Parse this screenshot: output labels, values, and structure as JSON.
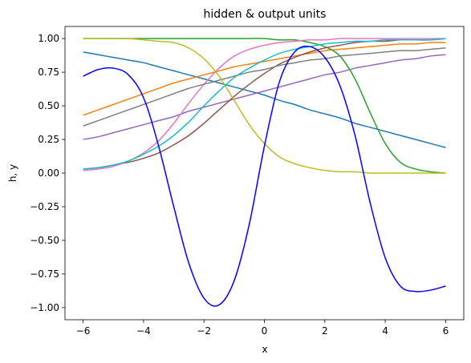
{
  "chart_data": {
    "type": "line",
    "title": "hidden & output units",
    "xlabel": "x",
    "ylabel": "h, y",
    "xlim": [
      -6.6,
      6.6
    ],
    "ylim": [
      -1.09,
      1.09
    ],
    "x_ticks": [
      -6,
      -4,
      -2,
      0,
      2,
      4,
      6
    ],
    "y_ticks": [
      -1.0,
      -0.75,
      -0.5,
      -0.25,
      0.0,
      0.25,
      0.5,
      0.75,
      1.0
    ],
    "x_tick_labels": [
      "−6",
      "−4",
      "−2",
      "0",
      "2",
      "4",
      "6"
    ],
    "y_tick_labels": [
      "−1.00",
      "−0.75",
      "−0.50",
      "−0.25",
      "0.00",
      "0.25",
      "0.50",
      "0.75",
      "1.00"
    ],
    "grid": false,
    "x": [
      -6,
      -5.5,
      -5,
      -4.5,
      -4,
      -3.5,
      -3,
      -2.5,
      -2,
      -1.5,
      -1,
      -0.5,
      0,
      0.5,
      1,
      1.5,
      2,
      2.5,
      3,
      3.5,
      4,
      4.5,
      5,
      5.5,
      6
    ],
    "series": [
      {
        "color": "#1f77b4",
        "values": [
          0.9,
          0.88,
          0.86,
          0.84,
          0.82,
          0.79,
          0.76,
          0.73,
          0.7,
          0.67,
          0.64,
          0.61,
          0.58,
          0.54,
          0.51,
          0.47,
          0.44,
          0.41,
          0.37,
          0.34,
          0.31,
          0.28,
          0.25,
          0.22,
          0.19
        ]
      },
      {
        "color": "#ff7f0e",
        "values": [
          0.43,
          0.47,
          0.51,
          0.55,
          0.59,
          0.63,
          0.67,
          0.7,
          0.73,
          0.76,
          0.79,
          0.81,
          0.83,
          0.85,
          0.87,
          0.89,
          0.91,
          0.92,
          0.93,
          0.94,
          0.95,
          0.96,
          0.96,
          0.97,
          0.97
        ]
      },
      {
        "color": "#2ca02c",
        "values": [
          1.0,
          1.0,
          1.0,
          1.0,
          1.0,
          1.0,
          1.0,
          1.0,
          1.0,
          1.0,
          1.0,
          1.0,
          1.0,
          0.99,
          0.99,
          0.97,
          0.94,
          0.87,
          0.7,
          0.45,
          0.22,
          0.08,
          0.03,
          0.01,
          0.0
        ]
      },
      {
        "color": "#9467bd",
        "values": [
          0.25,
          0.27,
          0.3,
          0.33,
          0.36,
          0.39,
          0.42,
          0.46,
          0.49,
          0.52,
          0.55,
          0.58,
          0.61,
          0.64,
          0.67,
          0.7,
          0.73,
          0.75,
          0.78,
          0.8,
          0.82,
          0.84,
          0.85,
          0.87,
          0.88
        ]
      },
      {
        "color": "#8c564b",
        "values": [
          0.03,
          0.04,
          0.06,
          0.08,
          0.11,
          0.15,
          0.21,
          0.28,
          0.37,
          0.47,
          0.57,
          0.66,
          0.74,
          0.81,
          0.86,
          0.9,
          0.93,
          0.95,
          0.97,
          0.98,
          0.98,
          0.99,
          0.99,
          0.99,
          1.0
        ]
      },
      {
        "color": "#e377c2",
        "values": [
          0.02,
          0.03,
          0.05,
          0.09,
          0.15,
          0.24,
          0.37,
          0.52,
          0.66,
          0.78,
          0.87,
          0.92,
          0.95,
          0.97,
          0.98,
          0.99,
          0.99,
          1.0,
          1.0,
          1.0,
          1.0,
          1.0,
          1.0,
          1.0,
          1.0
        ]
      },
      {
        "color": "#7f7f7f",
        "values": [
          0.35,
          0.39,
          0.43,
          0.47,
          0.51,
          0.55,
          0.59,
          0.63,
          0.66,
          0.69,
          0.72,
          0.75,
          0.77,
          0.8,
          0.82,
          0.84,
          0.85,
          0.87,
          0.88,
          0.89,
          0.9,
          0.91,
          0.91,
          0.92,
          0.93
        ]
      },
      {
        "color": "#bcbd22",
        "values": [
          1.0,
          1.0,
          1.0,
          1.0,
          0.99,
          0.98,
          0.97,
          0.93,
          0.85,
          0.72,
          0.54,
          0.36,
          0.22,
          0.12,
          0.07,
          0.04,
          0.02,
          0.01,
          0.01,
          0.0,
          0.0,
          0.0,
          0.0,
          0.0,
          0.0
        ]
      },
      {
        "color": "#17becf",
        "values": [
          0.03,
          0.04,
          0.06,
          0.09,
          0.14,
          0.2,
          0.28,
          0.38,
          0.5,
          0.61,
          0.71,
          0.78,
          0.84,
          0.89,
          0.92,
          0.94,
          0.96,
          0.97,
          0.98,
          0.98,
          0.99,
          0.99,
          0.99,
          0.99,
          1.0
        ]
      },
      {
        "color": "#0000ff",
        "values": [
          0.72,
          0.77,
          0.78,
          0.73,
          0.56,
          0.2,
          -0.25,
          -0.67,
          -0.93,
          -0.98,
          -0.8,
          -0.38,
          0.2,
          0.68,
          0.9,
          0.94,
          0.86,
          0.65,
          0.28,
          -0.22,
          -0.63,
          -0.84,
          -0.88,
          -0.87,
          -0.84
        ]
      }
    ]
  }
}
